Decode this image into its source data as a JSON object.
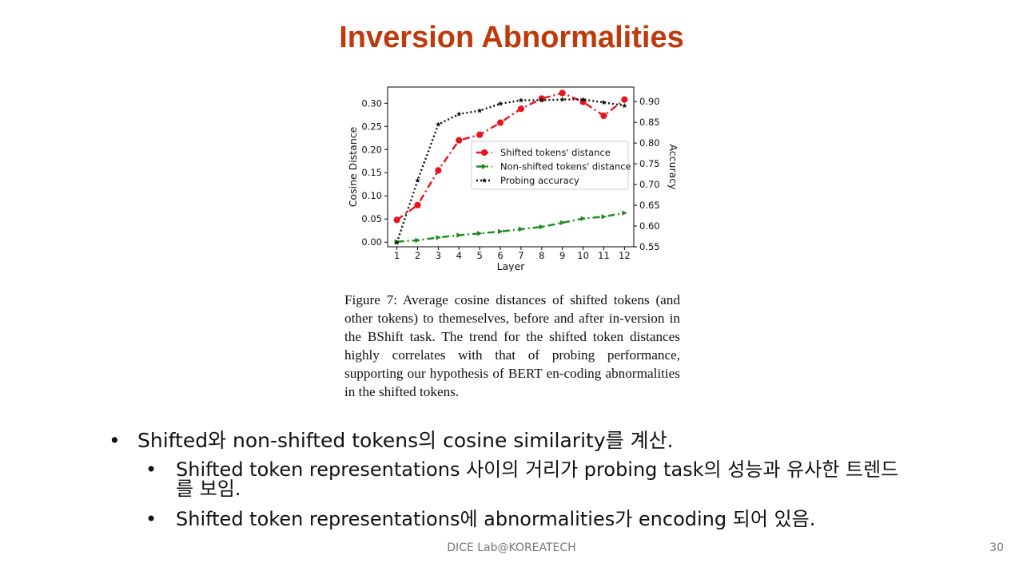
{
  "slide": {
    "title": "Inversion Abnormalities",
    "caption": "Figure 7:  Average cosine distances of shifted tokens (and other tokens) to themeselves, before and after in-version in the BShift task.  The trend for the shifted token distances highly correlates with that of probing performance, supporting our hypothesis of BERT en-coding abnormalities in the shifted tokens.",
    "bullets": [
      {
        "text": "Shifted와 non-shifted tokens의 cosine similarity를 계산.",
        "sub": [
          "Shifted token representations 사이의 거리가 probing task의 성능과 유사한 트렌드를 보임.",
          "Shifted token representations에 abnormalities가 encoding 되어 있음."
        ]
      }
    ],
    "bullet_glyph": "•",
    "footer": "DICE Lab@KOREATECH",
    "page_number": "30",
    "title_color": "#c0390b"
  },
  "chart_data": {
    "type": "line",
    "xlabel": "Layer",
    "ylabel_left": "Cosine Distance",
    "ylabel_right": "Accuracy",
    "x": [
      1,
      2,
      3,
      4,
      5,
      6,
      7,
      8,
      9,
      10,
      11,
      12
    ],
    "ylim_left": [
      -0.01,
      0.335
    ],
    "yticks_left": [
      "0.00",
      "0.05",
      "0.10",
      "0.15",
      "0.20",
      "0.25",
      "0.30"
    ],
    "ylim_right": [
      0.55,
      0.935
    ],
    "yticks_right": [
      "0.55",
      "0.60",
      "0.65",
      "0.70",
      "0.75",
      "0.80",
      "0.85",
      "0.90"
    ],
    "grid": false,
    "legend_position": "center-right",
    "series": [
      {
        "name": "Shifted tokens' distance",
        "axis": "left",
        "color": "#e8141c",
        "style": "dashdot",
        "marker": "circle",
        "values": [
          0.048,
          0.08,
          0.155,
          0.22,
          0.232,
          0.258,
          0.288,
          0.31,
          0.322,
          0.303,
          0.273,
          0.308
        ]
      },
      {
        "name": "Non-shifted tokens' distance",
        "axis": "left",
        "color": "#1e8a1e",
        "style": "dashdot",
        "marker": "arrow",
        "values": [
          0.001,
          0.004,
          0.01,
          0.015,
          0.019,
          0.023,
          0.028,
          0.033,
          0.042,
          0.051,
          0.055,
          0.063
        ]
      },
      {
        "name": "Probing accuracy",
        "axis": "right",
        "color": "#111111",
        "style": "dotted",
        "marker": "star",
        "values": [
          0.56,
          0.71,
          0.845,
          0.87,
          0.878,
          0.895,
          0.903,
          0.903,
          0.905,
          0.905,
          0.898,
          0.89
        ]
      }
    ]
  }
}
